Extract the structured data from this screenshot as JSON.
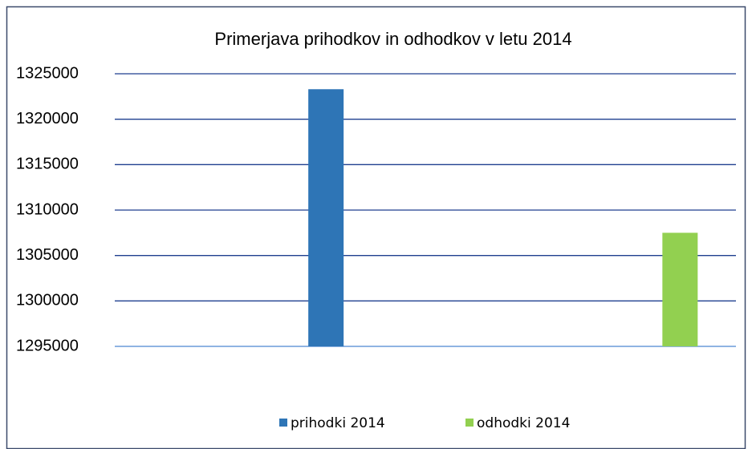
{
  "chart_data": {
    "type": "bar",
    "title": "Primerjava prihodkov in odhodkov v letu 2014",
    "categories": [
      null
    ],
    "series": [
      {
        "name": "prihodki 2014",
        "color": "#2e75b6",
        "values": [
          1323300
        ]
      },
      {
        "name": "odhodki 2014",
        "color": "#92d050",
        "values": [
          1307500
        ]
      }
    ],
    "ylim": [
      1295000,
      1325000
    ],
    "yticks": [
      1295000,
      1300000,
      1305000,
      1310000,
      1315000,
      1320000,
      1325000
    ],
    "grid": true,
    "legend": "bottom"
  }
}
